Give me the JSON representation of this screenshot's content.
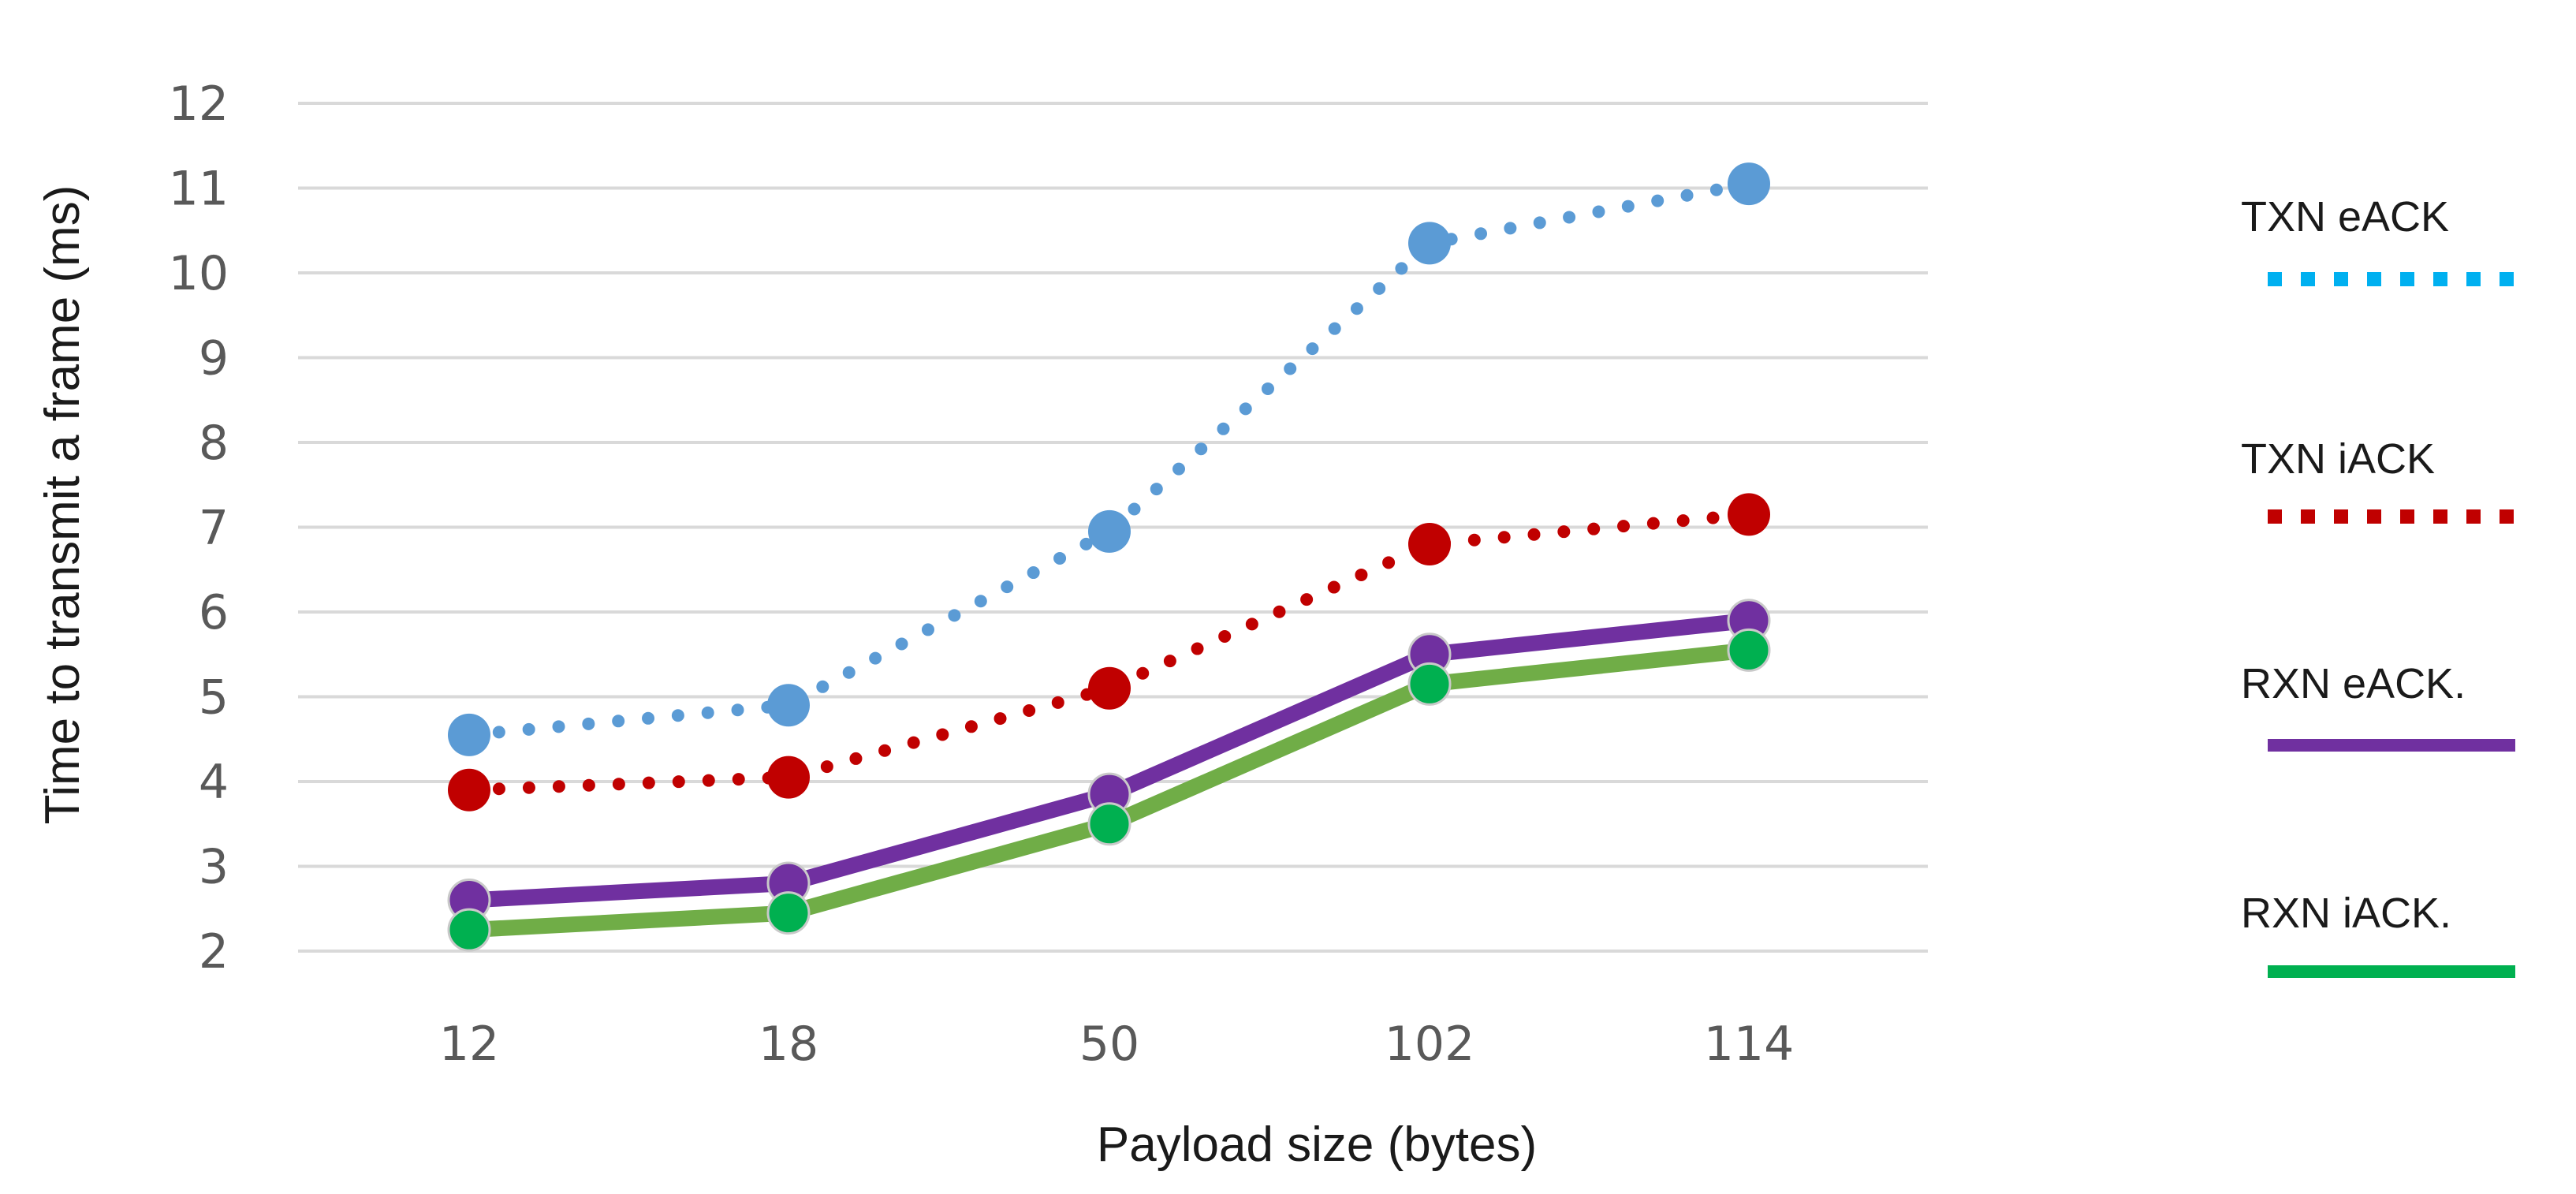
{
  "chart_data": {
    "type": "line",
    "title": "",
    "xlabel": "Payload size (bytes)",
    "ylabel": "Time to transmit a frame (ms)",
    "categories": [
      "12",
      "18",
      "50",
      "102",
      "114"
    ],
    "yticks": [
      "2",
      "3",
      "4",
      "5",
      "6",
      "7",
      "8",
      "9",
      "10",
      "11",
      "12"
    ],
    "ylim": [
      2,
      12
    ],
    "grid": true,
    "legend_position": "right",
    "series": [
      {
        "name": "TXN eACK",
        "legend_label": "TXN eACK",
        "values": [
          4.55,
          4.9,
          6.95,
          10.35,
          11.05
        ],
        "line_color": "#5b9bd5",
        "legend_color": "#00b0f0",
        "style": "dotted"
      },
      {
        "name": "TXN iACK",
        "legend_label": "TXN iACK",
        "values": [
          3.9,
          4.05,
          5.1,
          6.8,
          7.15
        ],
        "line_color": "#c00000",
        "legend_color": "#c00000",
        "style": "dotted"
      },
      {
        "name": "RXN eACK",
        "legend_label": "RXN eACK.",
        "values": [
          2.6,
          2.8,
          3.85,
          5.5,
          5.9
        ],
        "line_color": "#7030a0",
        "legend_color": "#7030a0",
        "style": "solid"
      },
      {
        "name": "RXN iACK",
        "legend_label": "RXN iACK.",
        "values": [
          2.25,
          2.45,
          3.5,
          5.15,
          5.55
        ],
        "line_color": "#70ad47",
        "legend_color": "#00b050",
        "marker_color": "#00b050",
        "style": "solid"
      }
    ]
  }
}
